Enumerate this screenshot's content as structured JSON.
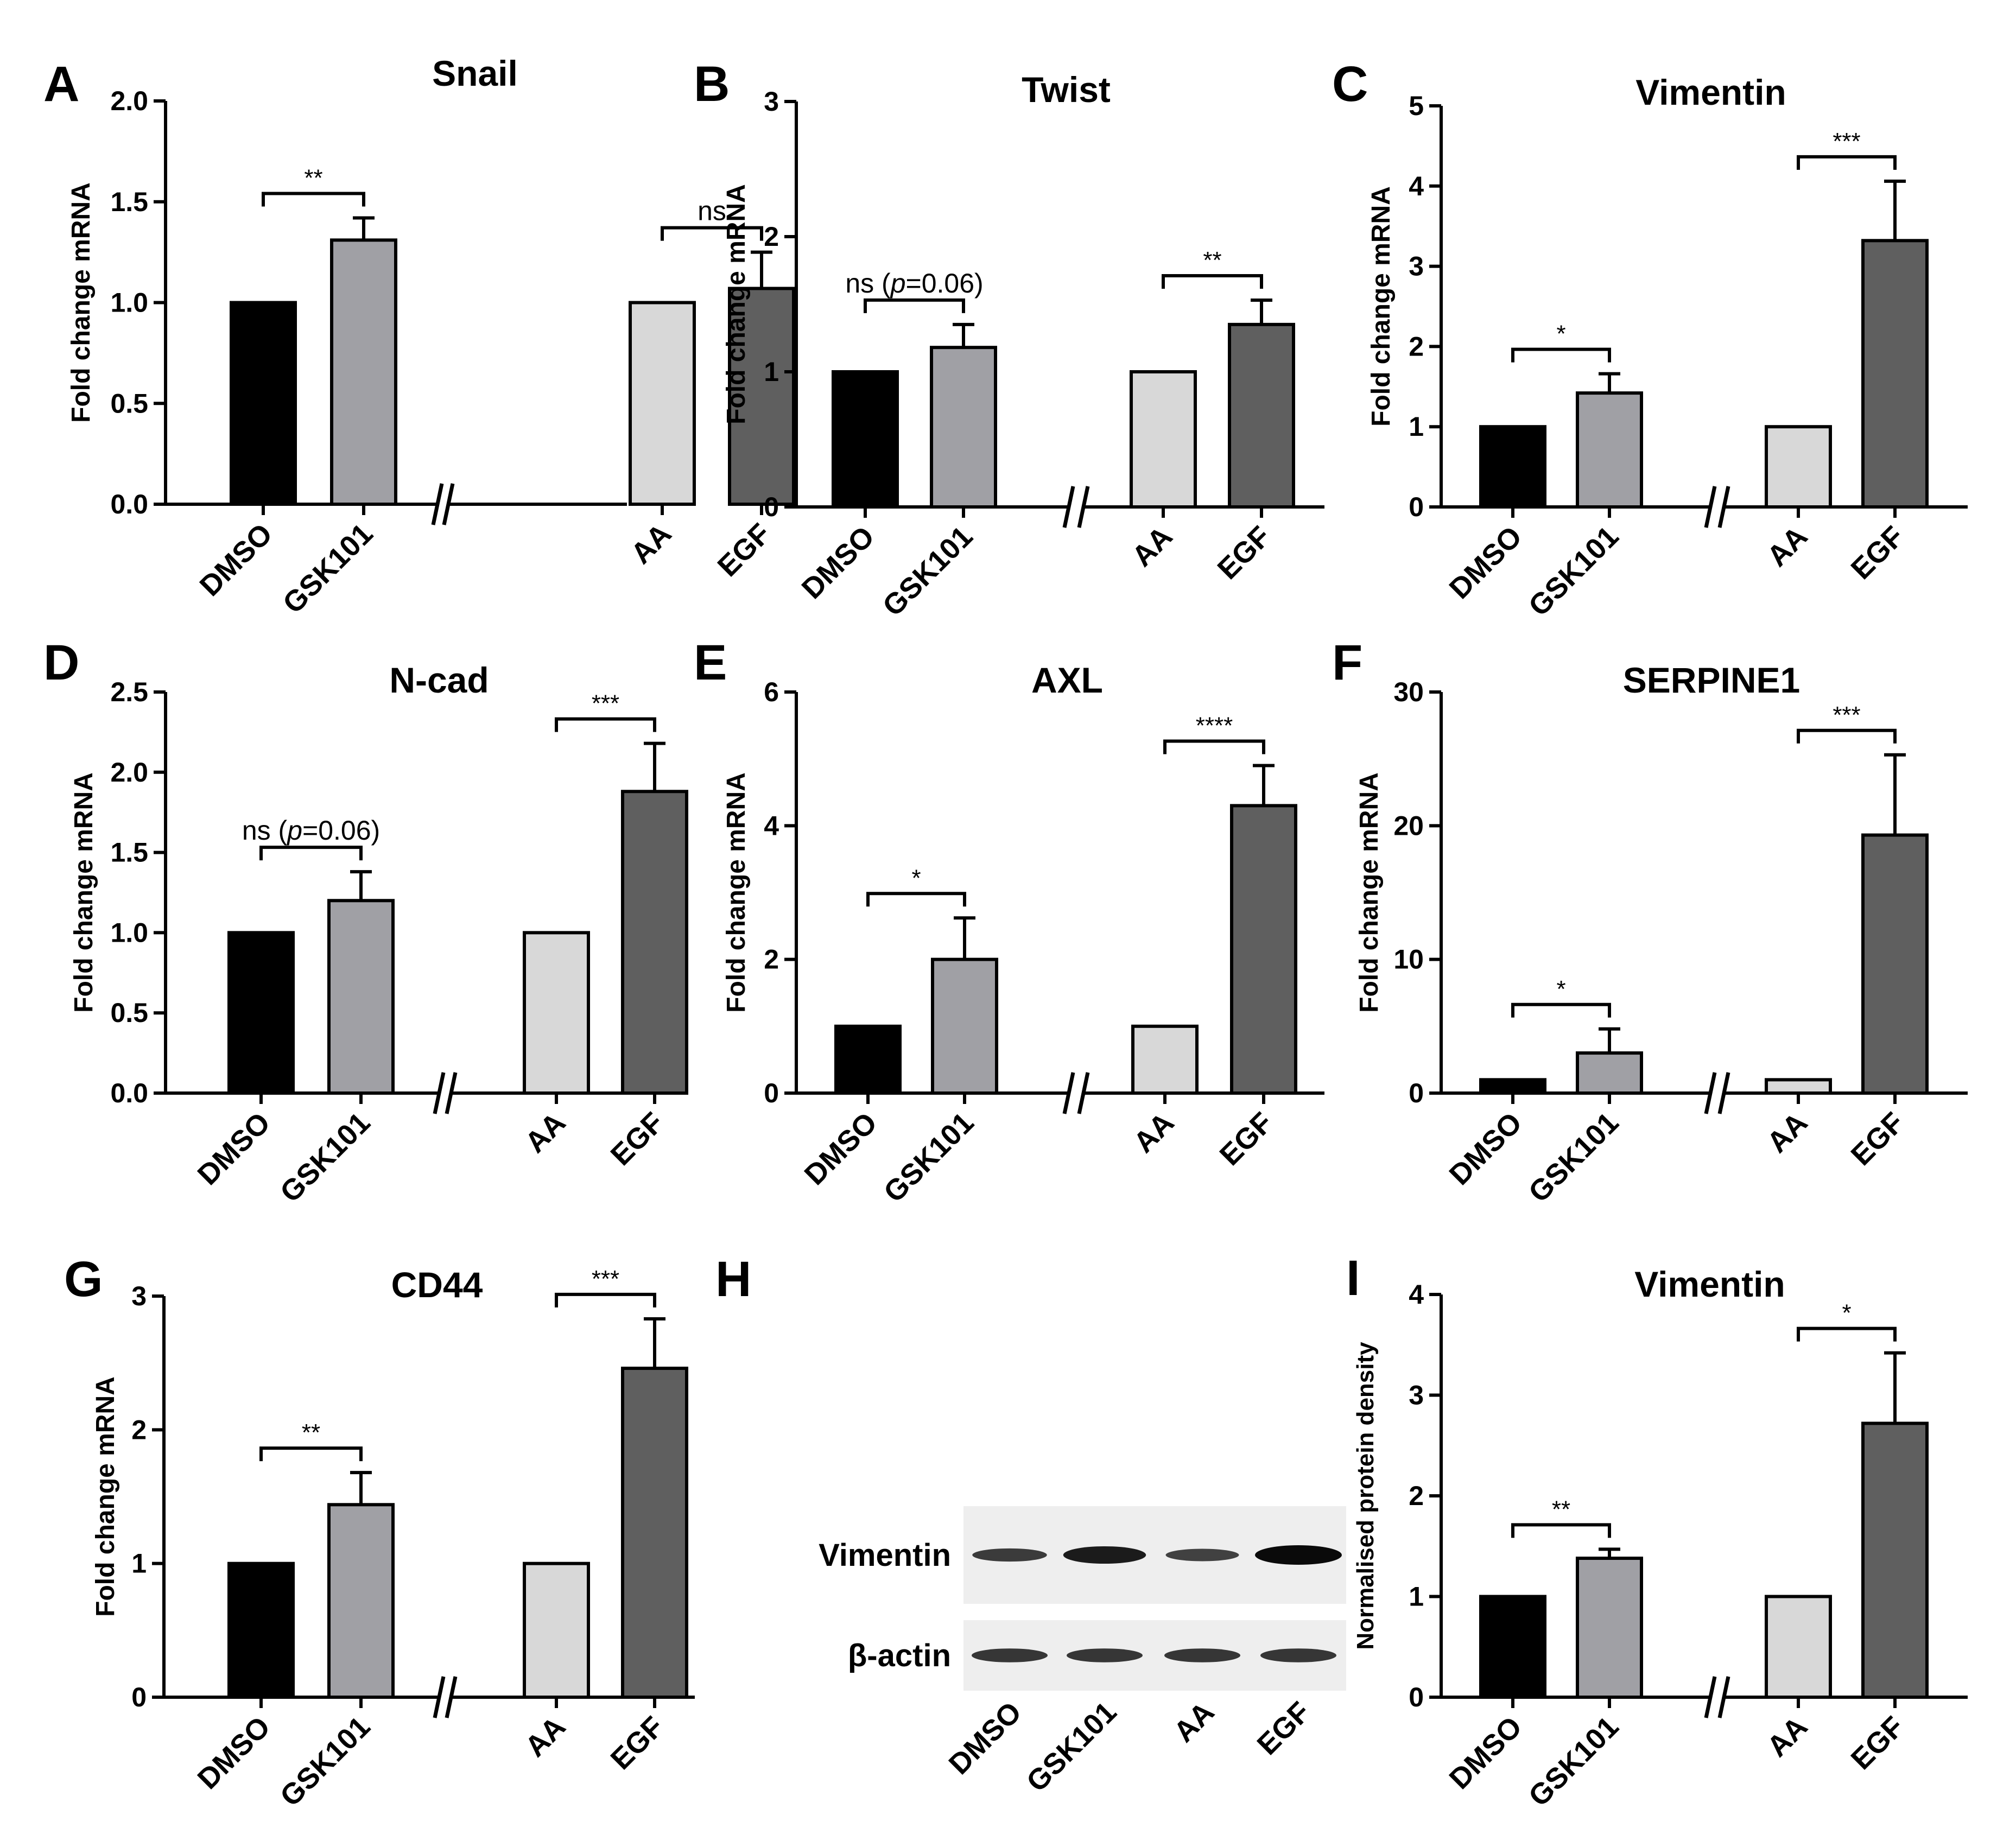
{
  "charts": [
    {
      "label": "A",
      "title": "Snail",
      "ylabel": "Fold change mRNA",
      "ylim": [
        0,
        2
      ],
      "yticks": [
        "0.0",
        "0.5",
        "1.0",
        "1.5",
        "2.0"
      ],
      "categories": [
        "DMSO",
        "GSK101",
        "AA",
        "EGF"
      ],
      "values": [
        1.0,
        1.31,
        1.0,
        1.07
      ],
      "errors": [
        0,
        0.11,
        0,
        0.18
      ],
      "comparisons": [
        {
          "from": 0,
          "to": 1,
          "label": "**"
        },
        {
          "from": 2,
          "to": 3,
          "label": "ns"
        }
      ]
    },
    {
      "label": "B",
      "title": "Twist",
      "ylabel": "Fold change mRNA",
      "ylim": [
        0,
        3
      ],
      "yticks": [
        "0",
        "1",
        "2",
        "3"
      ],
      "categories": [
        "DMSO",
        "GSK101",
        "AA",
        "EGF"
      ],
      "values": [
        1.0,
        1.18,
        1.0,
        1.35
      ],
      "errors": [
        0,
        0.17,
        0,
        0.18
      ],
      "comparisons": [
        {
          "from": 0,
          "to": 1,
          "label": "ns (",
          "italic": "p",
          "after": "=0.06)"
        },
        {
          "from": 2,
          "to": 3,
          "label": "**"
        }
      ]
    },
    {
      "label": "C",
      "title": "Vimentin",
      "ylabel": "Fold change mRNA",
      "ylim": [
        0,
        5
      ],
      "yticks": [
        "0",
        "1",
        "2",
        "3",
        "4",
        "5"
      ],
      "categories": [
        "DMSO",
        "GSK101",
        "AA",
        "EGF"
      ],
      "values": [
        1.0,
        1.42,
        1.0,
        3.32
      ],
      "errors": [
        0,
        0.24,
        0,
        0.74
      ],
      "comparisons": [
        {
          "from": 0,
          "to": 1,
          "label": "*"
        },
        {
          "from": 2,
          "to": 3,
          "label": "***"
        }
      ]
    },
    {
      "label": "D",
      "title": "N-cad",
      "ylabel": "Fold change mRNA",
      "ylim": [
        0,
        2.5
      ],
      "yticks": [
        "0.0",
        "0.5",
        "1.0",
        "1.5",
        "2.0",
        "2.5"
      ],
      "categories": [
        "DMSO",
        "GSK101",
        "AA",
        "EGF"
      ],
      "values": [
        1.0,
        1.2,
        1.0,
        1.88
      ],
      "errors": [
        0,
        0.18,
        0,
        0.3
      ],
      "comparisons": [
        {
          "from": 0,
          "to": 1,
          "label": "ns (",
          "italic": "p",
          "after": "=0.06)"
        },
        {
          "from": 2,
          "to": 3,
          "label": "***"
        }
      ]
    },
    {
      "label": "E",
      "title": "AXL",
      "ylabel": "Fold change mRNA",
      "ylim": [
        0,
        6
      ],
      "yticks": [
        "0",
        "2",
        "4",
        "6"
      ],
      "categories": [
        "DMSO",
        "GSK101",
        "AA",
        "EGF"
      ],
      "values": [
        1.0,
        2.0,
        1.0,
        4.3
      ],
      "errors": [
        0,
        0.62,
        0,
        0.6
      ],
      "comparisons": [
        {
          "from": 0,
          "to": 1,
          "label": "*"
        },
        {
          "from": 2,
          "to": 3,
          "label": "****"
        }
      ]
    },
    {
      "label": "F",
      "title": "SERPINE1",
      "ylabel": "Fold change mRNA",
      "ylim": [
        0,
        30
      ],
      "yticks": [
        "0",
        "10",
        "20",
        "30"
      ],
      "categories": [
        "DMSO",
        "GSK101",
        "AA",
        "EGF"
      ],
      "values": [
        1.0,
        3.0,
        1.0,
        19.3
      ],
      "errors": [
        0,
        1.8,
        0,
        6.0
      ],
      "comparisons": [
        {
          "from": 0,
          "to": 1,
          "label": "*"
        },
        {
          "from": 2,
          "to": 3,
          "label": "***"
        }
      ]
    },
    {
      "label": "G",
      "title": "CD44",
      "ylabel": "Fold change mRNA",
      "ylim": [
        0,
        3
      ],
      "yticks": [
        "0",
        "1",
        "2",
        "3"
      ],
      "categories": [
        "DMSO",
        "GSK101",
        "AA",
        "EGF"
      ],
      "values": [
        1.0,
        1.44,
        1.0,
        2.46
      ],
      "errors": [
        0,
        0.24,
        0,
        0.37
      ],
      "comparisons": [
        {
          "from": 0,
          "to": 1,
          "label": "**"
        },
        {
          "from": 2,
          "to": 3,
          "label": "***"
        }
      ]
    },
    {
      "label": "I",
      "title": "Vimentin",
      "ylabel": "Normalised protein density",
      "ylim": [
        0,
        4
      ],
      "yticks": [
        "0",
        "1",
        "2",
        "3",
        "4"
      ],
      "categories": [
        "DMSO",
        "GSK101",
        "AA",
        "EGF"
      ],
      "values": [
        1.0,
        1.38,
        1.0,
        2.72
      ],
      "errors": [
        0,
        0.09,
        0,
        0.7
      ],
      "comparisons": [
        {
          "from": 0,
          "to": 1,
          "label": "**"
        },
        {
          "from": 2,
          "to": 3,
          "label": "*"
        }
      ]
    }
  ],
  "chart_data": [
    {
      "type": "bar",
      "panel": "A",
      "title": "Snail",
      "ylabel": "Fold change mRNA",
      "categories": [
        "DMSO",
        "GSK101",
        "AA",
        "EGF"
      ],
      "values": [
        1.0,
        1.31,
        1.0,
        1.07
      ],
      "ylim": [
        0,
        2
      ]
    },
    {
      "type": "bar",
      "panel": "B",
      "title": "Twist",
      "ylabel": "Fold change mRNA",
      "categories": [
        "DMSO",
        "GSK101",
        "AA",
        "EGF"
      ],
      "values": [
        1.0,
        1.18,
        1.0,
        1.35
      ],
      "ylim": [
        0,
        3
      ]
    },
    {
      "type": "bar",
      "panel": "C",
      "title": "Vimentin",
      "ylabel": "Fold change mRNA",
      "categories": [
        "DMSO",
        "GSK101",
        "AA",
        "EGF"
      ],
      "values": [
        1.0,
        1.42,
        1.0,
        3.32
      ],
      "ylim": [
        0,
        5
      ]
    },
    {
      "type": "bar",
      "panel": "D",
      "title": "N-cad",
      "ylabel": "Fold change mRNA",
      "categories": [
        "DMSO",
        "GSK101",
        "AA",
        "EGF"
      ],
      "values": [
        1.0,
        1.2,
        1.0,
        1.88
      ],
      "ylim": [
        0,
        2.5
      ]
    },
    {
      "type": "bar",
      "panel": "E",
      "title": "AXL",
      "ylabel": "Fold change mRNA",
      "categories": [
        "DMSO",
        "GSK101",
        "AA",
        "EGF"
      ],
      "values": [
        1.0,
        2.0,
        1.0,
        4.3
      ],
      "ylim": [
        0,
        6
      ]
    },
    {
      "type": "bar",
      "panel": "F",
      "title": "SERPINE1",
      "ylabel": "Fold change mRNA",
      "categories": [
        "DMSO",
        "GSK101",
        "AA",
        "EGF"
      ],
      "values": [
        1.0,
        3.0,
        1.0,
        19.3
      ],
      "ylim": [
        0,
        30
      ]
    },
    {
      "type": "bar",
      "panel": "G",
      "title": "CD44",
      "ylabel": "Fold change mRNA",
      "categories": [
        "DMSO",
        "GSK101",
        "AA",
        "EGF"
      ],
      "values": [
        1.0,
        1.44,
        1.0,
        2.46
      ],
      "ylim": [
        0,
        3
      ]
    },
    {
      "type": "bar",
      "panel": "I",
      "title": "Vimentin",
      "ylabel": "Normalised protein density",
      "categories": [
        "DMSO",
        "GSK101",
        "AA",
        "EGF"
      ],
      "values": [
        1.0,
        1.38,
        1.0,
        2.72
      ],
      "ylim": [
        0,
        4
      ]
    }
  ],
  "blot": {
    "label": "H",
    "rows": [
      {
        "name": "Vimentin",
        "intensities": [
          0.55,
          0.85,
          0.5,
          1.0
        ]
      },
      {
        "name": "β-actin",
        "intensities": [
          0.6,
          0.6,
          0.6,
          0.6
        ]
      }
    ],
    "lanes": [
      "DMSO",
      "GSK101",
      "AA",
      "EGF"
    ]
  },
  "colors": {
    "DMSO": "#000000",
    "GSK101": "#a0a0a5",
    "AA": "#d8d8d8",
    "EGF": "#5f5f5f"
  }
}
